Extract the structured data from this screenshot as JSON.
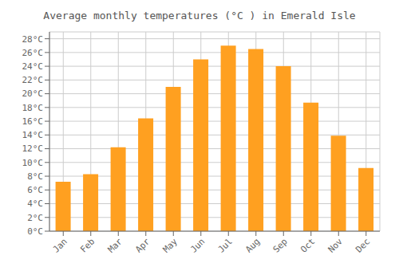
{
  "chart_data": {
    "type": "bar",
    "title": "Average monthly temperatures (°C ) in Emerald Isle",
    "categories": [
      "Jan",
      "Feb",
      "Mar",
      "Apr",
      "May",
      "Jun",
      "Jul",
      "Aug",
      "Sep",
      "Oct",
      "Nov",
      "Dec"
    ],
    "values": [
      7.2,
      8.3,
      12.2,
      16.4,
      21.0,
      25.0,
      27.0,
      26.5,
      24.0,
      18.7,
      13.9,
      9.2
    ],
    "color": "#FFA020",
    "ylim": [
      0,
      29
    ],
    "yticks": [
      {
        "value": 0,
        "label": "0°C"
      },
      {
        "value": 2,
        "label": "2°C"
      },
      {
        "value": 4,
        "label": "4°C"
      },
      {
        "value": 6,
        "label": "6°C"
      },
      {
        "value": 8,
        "label": "8°C"
      },
      {
        "value": 10,
        "label": "10°C"
      },
      {
        "value": 12,
        "label": "12°C"
      },
      {
        "value": 14,
        "label": "14°C"
      },
      {
        "value": 16,
        "label": "16°C"
      },
      {
        "value": 18,
        "label": "18°C"
      },
      {
        "value": 20,
        "label": "20°C"
      },
      {
        "value": 22,
        "label": "22°C"
      },
      {
        "value": 24,
        "label": "24°C"
      },
      {
        "value": 26,
        "label": "26°C"
      },
      {
        "value": 28,
        "label": "28°C"
      }
    ],
    "grid": true
  }
}
